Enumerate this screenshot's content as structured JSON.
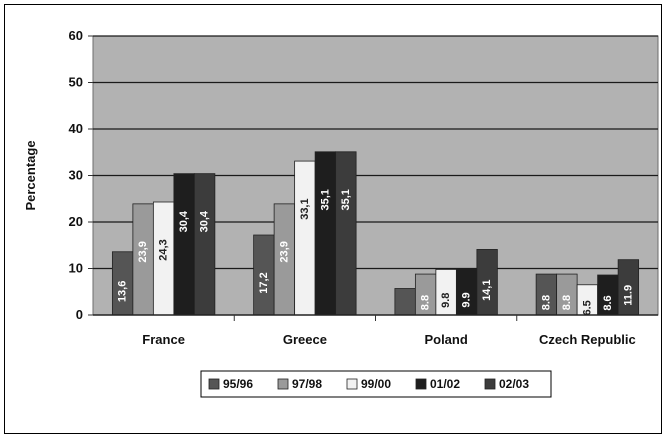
{
  "chart_data": {
    "type": "bar",
    "title": "",
    "xlabel": "",
    "ylabel": "Percentage",
    "ylim": [
      0,
      60
    ],
    "yticks": [
      0,
      10,
      20,
      30,
      40,
      50,
      60
    ],
    "grid": true,
    "legend_position": "bottom",
    "categories": [
      "France",
      "Greece",
      "Poland",
      "Czech Republic"
    ],
    "series": [
      {
        "name": "95/96",
        "color": "#555555",
        "values": [
          13.6,
          17.2,
          5.7,
          8.8
        ],
        "labels": [
          "13,6",
          "17,2",
          "",
          "8.8"
        ]
      },
      {
        "name": "97/98",
        "color": "#9a9a9a",
        "values": [
          23.9,
          23.9,
          8.8,
          8.8
        ],
        "labels": [
          "23,9",
          "23,9",
          "8.8",
          "8.8"
        ]
      },
      {
        "name": "99/00",
        "color": "#f2f2f2",
        "values": [
          24.3,
          33.1,
          9.8,
          6.5
        ],
        "labels": [
          "24,3",
          "33,1",
          "9.8",
          "6.5"
        ]
      },
      {
        "name": "01/02",
        "color": "#1e1e1e",
        "values": [
          30.4,
          35.1,
          9.9,
          8.6
        ],
        "labels": [
          "30,4",
          "35,1",
          "9.9",
          "8.6"
        ]
      },
      {
        "name": "02/03",
        "color": "#3c3c3c",
        "values": [
          30.4,
          35.1,
          14.1,
          11.9
        ],
        "labels": [
          "30,4",
          "35,1",
          "14,1",
          "11.9"
        ]
      }
    ]
  }
}
